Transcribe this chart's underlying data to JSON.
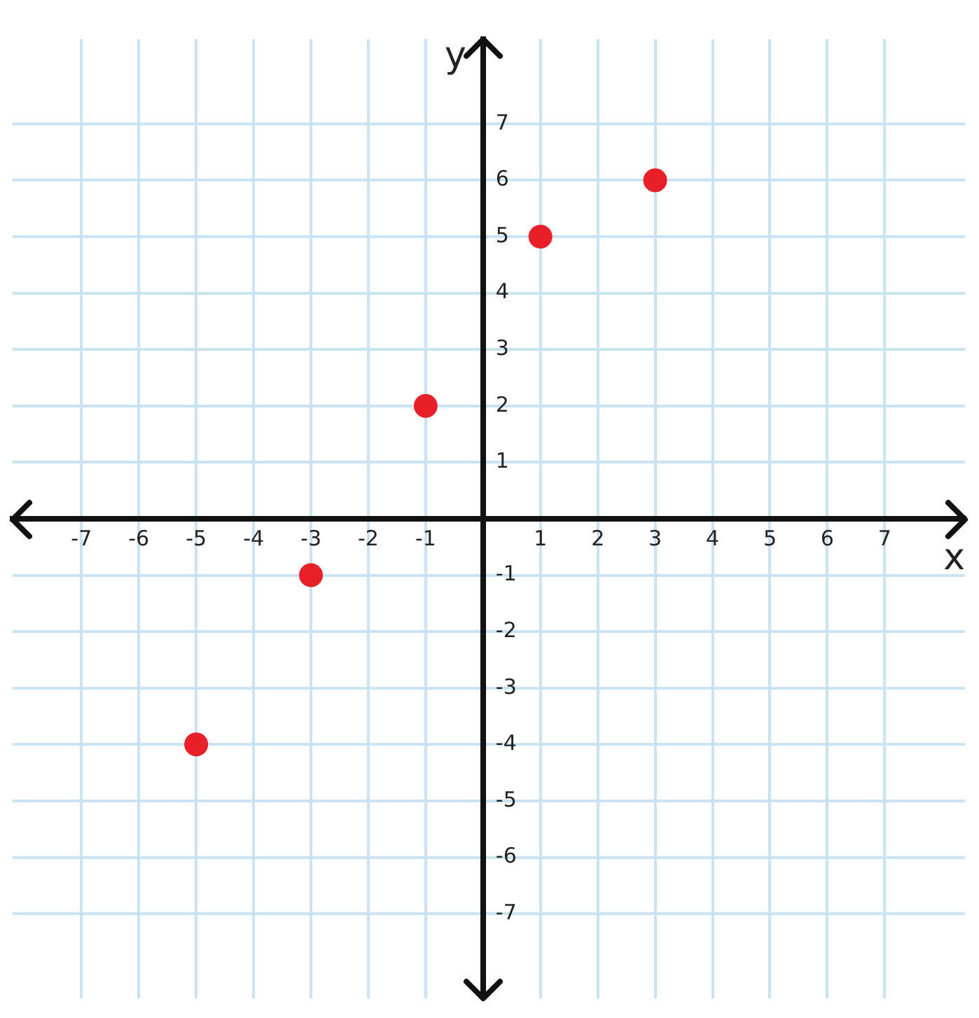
{
  "chart_data": {
    "type": "scatter",
    "xlabel": "x",
    "ylabel": "y",
    "x": [
      -5,
      -3,
      -1,
      1,
      3
    ],
    "series": [
      {
        "color": "#e8202a",
        "values": [
          -4,
          -1,
          2,
          5,
          6
        ]
      }
    ],
    "xlim": [
      -8.2,
      8.4
    ],
    "ylim": [
      -8.5,
      8.5
    ],
    "xticks": [
      -7,
      -6,
      -5,
      -4,
      -3,
      -2,
      -1,
      1,
      2,
      3,
      4,
      5,
      6,
      7
    ],
    "yticks": [
      -7,
      -6,
      -5,
      -4,
      -3,
      -2,
      -1,
      1,
      2,
      3,
      4,
      5,
      6,
      7
    ],
    "grid": true,
    "legend": false,
    "marker": "circle"
  }
}
